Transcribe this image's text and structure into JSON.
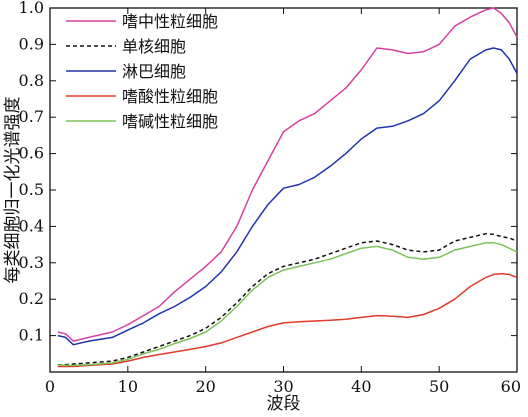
{
  "chart_data": {
    "type": "line",
    "xlabel": "波段",
    "ylabel": "每类细胞归一化光谱强度",
    "xlim": [
      0,
      60
    ],
    "ylim": [
      0,
      1.0
    ],
    "xticks": [
      0,
      10,
      20,
      30,
      40,
      50,
      60
    ],
    "yticks": [
      0.1,
      0.2,
      0.3,
      0.4,
      0.5,
      0.6,
      0.7,
      0.8,
      0.9,
      1.0
    ],
    "x": [
      1,
      2,
      3,
      5,
      8,
      10,
      12,
      14,
      16,
      18,
      20,
      22,
      24,
      26,
      28,
      30,
      32,
      34,
      36,
      38,
      40,
      42,
      44,
      46,
      48,
      50,
      52,
      54,
      56,
      57,
      58,
      59,
      60
    ],
    "legend_position": "top-left",
    "grid": false,
    "series": [
      {
        "name": "嗜中性粒细胞",
        "color": "#d6409f",
        "dash": "solid",
        "values": [
          0.11,
          0.105,
          0.085,
          0.095,
          0.11,
          0.13,
          0.155,
          0.18,
          0.22,
          0.255,
          0.29,
          0.33,
          0.4,
          0.5,
          0.58,
          0.66,
          0.69,
          0.71,
          0.745,
          0.78,
          0.83,
          0.89,
          0.885,
          0.875,
          0.88,
          0.9,
          0.95,
          0.975,
          0.995,
          1.0,
          0.985,
          0.96,
          0.92
        ]
      },
      {
        "name": "单核细胞",
        "color": "#111111",
        "dash": "dashed",
        "values": [
          0.02,
          0.02,
          0.022,
          0.025,
          0.03,
          0.04,
          0.055,
          0.07,
          0.085,
          0.1,
          0.12,
          0.15,
          0.19,
          0.235,
          0.27,
          0.29,
          0.3,
          0.31,
          0.325,
          0.34,
          0.355,
          0.36,
          0.35,
          0.335,
          0.33,
          0.335,
          0.36,
          0.37,
          0.38,
          0.378,
          0.372,
          0.368,
          0.36
        ]
      },
      {
        "name": "淋巴细胞",
        "color": "#2233aa",
        "dash": "solid",
        "values": [
          0.1,
          0.095,
          0.075,
          0.085,
          0.095,
          0.115,
          0.135,
          0.16,
          0.18,
          0.205,
          0.235,
          0.275,
          0.33,
          0.4,
          0.46,
          0.505,
          0.515,
          0.535,
          0.565,
          0.6,
          0.64,
          0.67,
          0.675,
          0.69,
          0.71,
          0.745,
          0.8,
          0.86,
          0.885,
          0.89,
          0.885,
          0.86,
          0.82
        ]
      },
      {
        "name": "嗜酸性粒细胞",
        "color": "#e23b2b",
        "dash": "solid",
        "values": [
          0.015,
          0.015,
          0.015,
          0.018,
          0.022,
          0.03,
          0.04,
          0.048,
          0.055,
          0.062,
          0.07,
          0.08,
          0.095,
          0.11,
          0.125,
          0.135,
          0.138,
          0.14,
          0.142,
          0.145,
          0.15,
          0.155,
          0.153,
          0.15,
          0.158,
          0.175,
          0.2,
          0.235,
          0.26,
          0.268,
          0.27,
          0.268,
          0.26
        ]
      },
      {
        "name": "嗜碱性粒细胞",
        "color": "#7cc25a",
        "dash": "solid",
        "values": [
          0.02,
          0.018,
          0.018,
          0.02,
          0.025,
          0.035,
          0.05,
          0.062,
          0.078,
          0.092,
          0.11,
          0.14,
          0.18,
          0.225,
          0.26,
          0.28,
          0.29,
          0.3,
          0.31,
          0.325,
          0.34,
          0.345,
          0.335,
          0.315,
          0.31,
          0.315,
          0.335,
          0.345,
          0.355,
          0.355,
          0.35,
          0.34,
          0.33
        ]
      }
    ]
  }
}
